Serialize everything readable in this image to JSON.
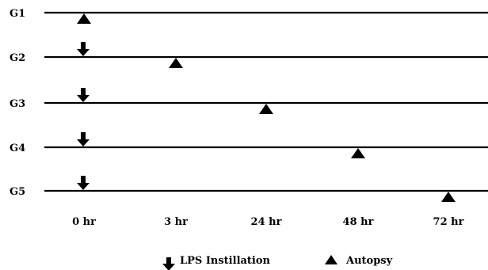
{
  "groups": [
    {
      "label": "G1",
      "lps_time": "",
      "autopsy_time": "0 hr"
    },
    {
      "label": "G2",
      "lps_time": "0 hr",
      "autopsy_time": "3 hr"
    },
    {
      "label": "G3",
      "lps_time": "0 hr",
      "autopsy_time": "24 hr"
    },
    {
      "label": "G4",
      "lps_time": "0 hr",
      "autopsy_time": "48 hr"
    },
    {
      "label": "G5",
      "lps_time": "0 hr",
      "autopsy_time": "72 hr"
    }
  ],
  "time_points": [
    "0 hr",
    "3 hr",
    "24 hr",
    "48 hr",
    "72 hr"
  ],
  "legend": {
    "lps": {
      "label": "LPS Instillation",
      "icon": "down-arrow-icon"
    },
    "autopsy": {
      "label": "Autopsy",
      "icon": "triangle-icon"
    }
  },
  "colors": {
    "ink": "#000000"
  }
}
